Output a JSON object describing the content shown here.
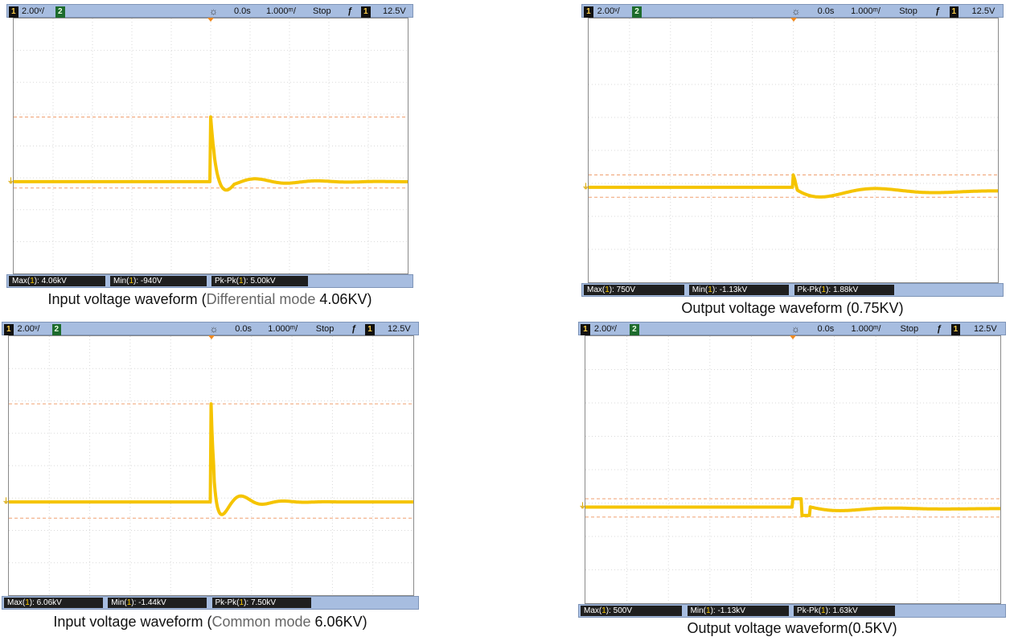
{
  "accent": {
    "trace": "#f5c400",
    "cursor": "#f0a070",
    "bar": "#a7bde0"
  },
  "panels": [
    {
      "topbar": {
        "ch1": "1",
        "scale": "2.00ᵛ/",
        "ch2": "2",
        "delay": "0.0s",
        "timebase": "1.000ᵐ/",
        "state": "Stop",
        "trig_icon": "⨍",
        "trig_ch": "1",
        "level": "12.5V"
      },
      "measurements": {
        "max": {
          "label": "Max(",
          "ch": "1",
          "tail": "): 4.06kV"
        },
        "min": {
          "label": "Min(",
          "ch": "1",
          "tail": "): -940V"
        },
        "pkpk": {
          "label": "Pk-Pk(",
          "ch": "1",
          "tail": "): 5.00kV"
        }
      },
      "caption": {
        "pre": "Input voltage waveform (",
        "dim": "Differential mode",
        "post": " 4.06KV)"
      },
      "chart_data": {
        "type": "line",
        "max": 4.06,
        "min": -0.94,
        "unit": "kV",
        "cursor_high": 4.06,
        "cursor_low": -0.4,
        "pulse": "differential"
      }
    },
    {
      "topbar": {
        "ch1": "1",
        "scale": "2.00ᵛ/",
        "ch2": "2",
        "delay": "0.0s",
        "timebase": "1.000ᵐ/",
        "state": "Stop",
        "trig_icon": "⨍",
        "trig_ch": "1",
        "level": "12.5V"
      },
      "measurements": {
        "max": {
          "label": "Max(",
          "ch": "1",
          "tail": "): 750V"
        },
        "min": {
          "label": "Min(",
          "ch": "1",
          "tail": "): -1.13kV"
        },
        "pkpk": {
          "label": "Pk-Pk(",
          "ch": "1",
          "tail": "): 1.88kV"
        }
      },
      "caption": {
        "pre": "Output voltage waveform (0.75KV)",
        "dim": "",
        "post": ""
      },
      "chart_data": {
        "type": "line",
        "max": 0.75,
        "min": -1.13,
        "unit": "kV",
        "cursor_high": 0.75,
        "cursor_low": -0.6,
        "pulse": "output1"
      }
    },
    {
      "topbar": {
        "ch1": "1",
        "scale": "2.00ᵛ/",
        "ch2": "2",
        "delay": "0.0s",
        "timebase": "1.000ᵐ/",
        "state": "Stop",
        "trig_icon": "⨍",
        "trig_ch": "1",
        "level": "12.5V"
      },
      "measurements": {
        "max": {
          "label": "Max(",
          "ch": "1",
          "tail": "): 6.06kV"
        },
        "min": {
          "label": "Min(",
          "ch": "1",
          "tail": "): -1.44kV"
        },
        "pkpk": {
          "label": "Pk-Pk(",
          "ch": "1",
          "tail": "): 7.50kV"
        }
      },
      "caption": {
        "pre": "Input voltage waveform (",
        "dim": "Common mode",
        "post": " 6.06KV)"
      },
      "chart_data": {
        "type": "line",
        "max": 6.06,
        "min": -1.44,
        "unit": "kV",
        "cursor_high": 6.06,
        "cursor_low": -1.0,
        "pulse": "common"
      }
    },
    {
      "topbar": {
        "ch1": "1",
        "scale": "2.00ᵛ/",
        "ch2": "2",
        "delay": "0.0s",
        "timebase": "1.000ᵐ/",
        "state": "Stop",
        "trig_icon": "⨍",
        "trig_ch": "1",
        "level": "12.5V"
      },
      "measurements": {
        "max": {
          "label": "Max(",
          "ch": "1",
          "tail": "): 500V"
        },
        "min": {
          "label": "Min(",
          "ch": "1",
          "tail": "): -1.13kV"
        },
        "pkpk": {
          "label": "Pk-Pk(",
          "ch": "1",
          "tail": "): 1.63kV"
        }
      },
      "caption": {
        "pre": "Output voltage waveform(0.5KV)",
        "dim": "",
        "post": ""
      },
      "chart_data": {
        "type": "line",
        "max": 0.5,
        "min": -1.13,
        "unit": "kV",
        "cursor_high": 0.5,
        "cursor_low": -0.6,
        "pulse": "output2"
      }
    }
  ]
}
